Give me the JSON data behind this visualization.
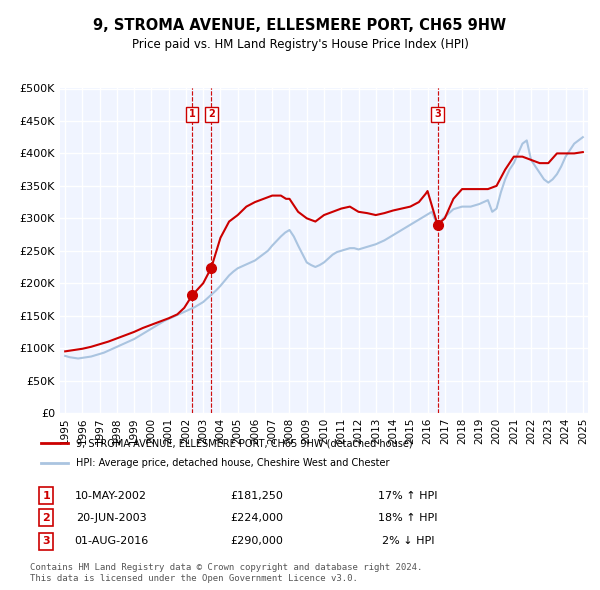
{
  "title": "9, STROMA AVENUE, ELLESMERE PORT, CH65 9HW",
  "subtitle": "Price paid vs. HM Land Registry's House Price Index (HPI)",
  "title_fontsize": 11,
  "subtitle_fontsize": 9,
  "background_color": "#ffffff",
  "plot_bg_color": "#f0f4ff",
  "grid_color": "#ffffff",
  "legend1_label": "9, STROMA AVENUE, ELLESMERE PORT, CH65 9HW (detached house)",
  "legend2_label": "HPI: Average price, detached house, Cheshire West and Chester",
  "line1_color": "#cc0000",
  "line2_color": "#aac4e0",
  "purchases": [
    {
      "num": 1,
      "date": "10-MAY-2002",
      "price": "£181,250",
      "pct": "17%",
      "dir": "↑",
      "x": 2002.36
    },
    {
      "num": 2,
      "date": "20-JUN-2003",
      "price": "£224,000",
      "pct": "18%",
      "dir": "↑",
      "x": 2003.47
    },
    {
      "num": 3,
      "date": "01-AUG-2016",
      "price": "£290,000",
      "pct": "2%",
      "dir": "↓",
      "x": 2016.58
    }
  ],
  "purchase_values": [
    181250,
    224000,
    290000
  ],
  "xlabel_years": [
    1995,
    1996,
    1997,
    1998,
    1999,
    2000,
    2001,
    2002,
    2003,
    2004,
    2005,
    2006,
    2007,
    2008,
    2009,
    2010,
    2011,
    2012,
    2013,
    2014,
    2015,
    2016,
    2017,
    2018,
    2019,
    2020,
    2021,
    2022,
    2023,
    2024,
    2025
  ],
  "ylim": [
    0,
    500000
  ],
  "yticks": [
    0,
    50000,
    100000,
    150000,
    200000,
    250000,
    300000,
    350000,
    400000,
    450000,
    500000
  ],
  "footnote": "Contains HM Land Registry data © Crown copyright and database right 2024.\nThis data is licensed under the Open Government Licence v3.0.",
  "hpi_line": {
    "years": [
      1995.0,
      1995.25,
      1995.5,
      1995.75,
      1996.0,
      1996.25,
      1996.5,
      1996.75,
      1997.0,
      1997.25,
      1997.5,
      1997.75,
      1998.0,
      1998.25,
      1998.5,
      1998.75,
      1999.0,
      1999.25,
      1999.5,
      1999.75,
      2000.0,
      2000.25,
      2000.5,
      2000.75,
      2001.0,
      2001.25,
      2001.5,
      2001.75,
      2002.0,
      2002.25,
      2002.5,
      2002.75,
      2003.0,
      2003.25,
      2003.5,
      2003.75,
      2004.0,
      2004.25,
      2004.5,
      2004.75,
      2005.0,
      2005.25,
      2005.5,
      2005.75,
      2006.0,
      2006.25,
      2006.5,
      2006.75,
      2007.0,
      2007.25,
      2007.5,
      2007.75,
      2008.0,
      2008.25,
      2008.5,
      2008.75,
      2009.0,
      2009.25,
      2009.5,
      2009.75,
      2010.0,
      2010.25,
      2010.5,
      2010.75,
      2011.0,
      2011.25,
      2011.5,
      2011.75,
      2012.0,
      2012.25,
      2012.5,
      2012.75,
      2013.0,
      2013.25,
      2013.5,
      2013.75,
      2014.0,
      2014.25,
      2014.5,
      2014.75,
      2015.0,
      2015.25,
      2015.5,
      2015.75,
      2016.0,
      2016.25,
      2016.5,
      2016.75,
      2017.0,
      2017.25,
      2017.5,
      2017.75,
      2018.0,
      2018.25,
      2018.5,
      2018.75,
      2019.0,
      2019.25,
      2019.5,
      2019.75,
      2020.0,
      2020.25,
      2020.5,
      2020.75,
      2021.0,
      2021.25,
      2021.5,
      2021.75,
      2022.0,
      2022.25,
      2022.5,
      2022.75,
      2023.0,
      2023.25,
      2023.5,
      2023.75,
      2024.0,
      2024.25,
      2024.5,
      2024.75,
      2025.0
    ],
    "values": [
      88000,
      86000,
      85000,
      84000,
      85000,
      86000,
      87000,
      89000,
      91000,
      93000,
      96000,
      99000,
      102000,
      105000,
      108000,
      111000,
      114000,
      118000,
      122000,
      126000,
      130000,
      134000,
      138000,
      142000,
      145000,
      148000,
      151000,
      154000,
      157000,
      160000,
      163000,
      167000,
      171000,
      177000,
      183000,
      189000,
      196000,
      204000,
      212000,
      218000,
      223000,
      226000,
      229000,
      232000,
      235000,
      240000,
      245000,
      250000,
      258000,
      265000,
      272000,
      278000,
      282000,
      272000,
      258000,
      245000,
      232000,
      228000,
      225000,
      228000,
      232000,
      238000,
      244000,
      248000,
      250000,
      252000,
      254000,
      254000,
      252000,
      254000,
      256000,
      258000,
      260000,
      263000,
      266000,
      270000,
      274000,
      278000,
      282000,
      286000,
      290000,
      294000,
      298000,
      302000,
      306000,
      310000,
      294000,
      296000,
      302000,
      308000,
      314000,
      316000,
      318000,
      318000,
      318000,
      320000,
      322000,
      325000,
      328000,
      310000,
      315000,
      340000,
      360000,
      375000,
      385000,
      400000,
      415000,
      420000,
      390000,
      380000,
      370000,
      360000,
      355000,
      360000,
      368000,
      380000,
      395000,
      405000,
      415000,
      420000,
      425000
    ]
  },
  "price_line": {
    "years": [
      1995.0,
      1995.5,
      1996.0,
      1996.5,
      1997.0,
      1997.5,
      1998.0,
      1998.5,
      1999.0,
      1999.5,
      2000.0,
      2000.5,
      2001.0,
      2001.5,
      2001.9,
      2002.36,
      2003.0,
      2003.47,
      2004.0,
      2004.5,
      2005.0,
      2005.5,
      2006.0,
      2006.5,
      2007.0,
      2007.5,
      2007.8,
      2008.0,
      2008.5,
      2009.0,
      2009.5,
      2010.0,
      2010.5,
      2011.0,
      2011.5,
      2012.0,
      2012.5,
      2013.0,
      2013.5,
      2014.0,
      2014.5,
      2015.0,
      2015.5,
      2015.9,
      2016.0,
      2016.58,
      2017.0,
      2017.5,
      2018.0,
      2018.5,
      2019.0,
      2019.5,
      2020.0,
      2020.5,
      2021.0,
      2021.5,
      2022.0,
      2022.5,
      2023.0,
      2023.5,
      2024.0,
      2024.5,
      2025.0
    ],
    "values": [
      95000,
      97000,
      99000,
      102000,
      106000,
      110000,
      115000,
      120000,
      125000,
      131000,
      136000,
      141000,
      146000,
      152000,
      162000,
      181250,
      200000,
      224000,
      270000,
      295000,
      305000,
      318000,
      325000,
      330000,
      335000,
      335000,
      330000,
      330000,
      310000,
      300000,
      295000,
      305000,
      310000,
      315000,
      318000,
      310000,
      308000,
      305000,
      308000,
      312000,
      315000,
      318000,
      325000,
      338000,
      342000,
      290000,
      300000,
      330000,
      345000,
      345000,
      345000,
      345000,
      350000,
      375000,
      395000,
      395000,
      390000,
      385000,
      385000,
      400000,
      400000,
      400000,
      402000
    ]
  }
}
